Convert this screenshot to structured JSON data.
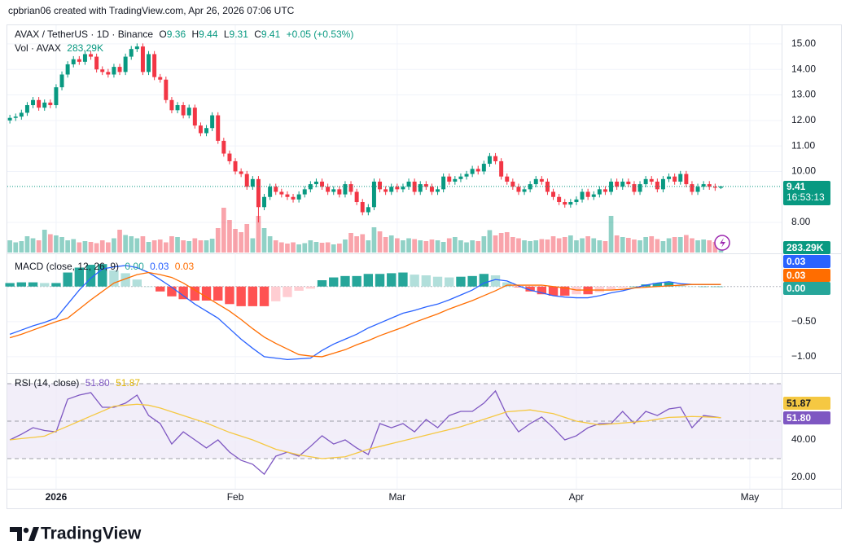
{
  "header": {
    "attribution": "cpbrian06 created with TradingView.com, Apr 26, 2026 07:06 UTC"
  },
  "footer": {
    "logo": "TradingView"
  },
  "chart_data": [
    {
      "type": "candlestick",
      "title": "AVAX / TetherUS · 1D · Binance",
      "ohlc_letters": [
        "O",
        "H",
        "L",
        "C"
      ],
      "change_label": "+0.05 (+0.53%)",
      "countdown": "16:53:13",
      "up_color": "#089981",
      "down_color": "#f23645",
      "open": [
        12,
        12.1,
        12.15,
        12.3,
        12.6,
        12.8,
        12.5,
        12.7,
        12.6,
        13.3,
        13.8,
        14.2,
        14.4,
        14.3,
        14.6,
        14.5,
        14,
        13.9,
        13.8,
        14.1,
        13.9,
        14.5,
        14.8,
        14.9,
        13.9,
        14.6,
        13.7,
        13.6,
        12.8,
        12.4,
        12.6,
        12.2,
        12.5,
        11.8,
        11.5,
        11.7,
        12.2,
        11.2,
        10.7,
        10.4,
        10,
        9.9,
        9.4,
        9.7,
        8.6,
        9,
        9.4,
        9.2,
        9.1,
        9,
        8.9,
        9.1,
        9.3,
        9.5,
        9.6,
        9.4,
        9.2,
        9.3,
        9.1,
        9.5,
        9.2,
        8.8,
        8.4,
        8.6,
        9.6,
        9.3,
        9.2,
        9.4,
        9.3,
        9.4,
        9.6,
        9.2,
        9.5,
        9.4,
        9.2,
        9.3,
        9.8,
        9.6,
        9.7,
        9.8,
        9.9,
        10.1,
        10,
        10.3,
        10.6,
        10.4,
        9.8,
        9.6,
        9.4,
        9.2,
        9.3,
        9.5,
        9.7,
        9.6,
        9.2,
        9,
        8.8,
        8.7,
        8.8,
        8.9,
        9.2,
        9,
        9.1,
        9.3,
        9.2,
        9.6,
        9.4,
        9.6,
        9.5,
        9.2,
        9.5,
        9.7,
        9.6,
        9.3,
        9.7,
        9.8,
        9.6,
        9.9,
        9.5,
        9.2,
        9.4,
        9.5,
        9.4,
        9.36
      ],
      "high": [
        12.22,
        12.27,
        12.42,
        12.72,
        12.92,
        12.92,
        12.82,
        12.82,
        13.42,
        13.92,
        14.32,
        14.52,
        14.52,
        14.72,
        14.72,
        14.62,
        14.12,
        14.02,
        14.22,
        14.22,
        14.62,
        14.92,
        15.02,
        15.02,
        14.72,
        14.72,
        13.82,
        13.72,
        12.92,
        12.72,
        12.72,
        12.62,
        12.62,
        11.92,
        11.82,
        12.32,
        12.32,
        11.32,
        10.82,
        10.52,
        10.12,
        10.02,
        9.82,
        9.82,
        9.12,
        9.52,
        9.52,
        9.32,
        9.22,
        9.12,
        9.22,
        9.42,
        9.62,
        9.72,
        9.72,
        9.52,
        9.42,
        9.42,
        9.62,
        9.62,
        9.32,
        8.92,
        8.72,
        9.72,
        9.72,
        9.42,
        9.52,
        9.52,
        9.52,
        9.72,
        9.72,
        9.62,
        9.62,
        9.52,
        9.42,
        9.92,
        9.92,
        9.82,
        9.92,
        10.02,
        10.22,
        10.22,
        10.42,
        10.72,
        10.72,
        10.52,
        9.92,
        9.72,
        9.52,
        9.42,
        9.62,
        9.82,
        9.82,
        9.72,
        9.32,
        9.12,
        8.92,
        8.92,
        9.02,
        9.32,
        9.32,
        9.22,
        9.42,
        9.42,
        9.72,
        9.72,
        9.72,
        9.72,
        9.62,
        9.62,
        9.82,
        9.82,
        9.72,
        9.82,
        9.92,
        9.92,
        10.02,
        10.02,
        9.62,
        9.52,
        9.62,
        9.62,
        9.52,
        9.44
      ],
      "low": [
        11.88,
        11.98,
        12.03,
        12.18,
        12.48,
        12.38,
        12.38,
        12.48,
        12.48,
        13.18,
        13.68,
        14.08,
        14.18,
        14.18,
        14.38,
        13.88,
        13.78,
        13.68,
        13.68,
        13.78,
        13.78,
        14.38,
        14.68,
        13.78,
        13.78,
        13.58,
        13.48,
        12.68,
        12.28,
        12.28,
        12.08,
        12.08,
        11.68,
        11.38,
        11.38,
        11.58,
        11.08,
        10.58,
        10.28,
        9.88,
        9.78,
        9.28,
        9.28,
        8,
        8.48,
        8.88,
        9.08,
        8.98,
        8.88,
        8.78,
        8.78,
        8.98,
        9.18,
        9.38,
        9.28,
        9.08,
        9.08,
        8.98,
        8.98,
        9.08,
        8.68,
        8.28,
        8.28,
        8.48,
        9.18,
        9.08,
        9.08,
        9.18,
        9.18,
        9.28,
        9.08,
        9.08,
        9.28,
        9.08,
        9.08,
        9.18,
        9.48,
        9.48,
        9.58,
        9.68,
        9.78,
        9.88,
        9.88,
        10.18,
        10.28,
        9.68,
        9.48,
        9.28,
        9.08,
        9.08,
        9.18,
        9.38,
        9.48,
        9.08,
        8.88,
        8.68,
        8.58,
        8.58,
        8.68,
        8.78,
        8.88,
        8.88,
        8.98,
        9.08,
        9.08,
        9.28,
        9.28,
        9.38,
        9.08,
        9.08,
        9.38,
        9.48,
        9.18,
        9.18,
        9.58,
        9.48,
        9.48,
        9.38,
        9.08,
        9.08,
        9.28,
        9.28,
        9.24,
        9.31
      ],
      "close": [
        12.1,
        12.15,
        12.3,
        12.6,
        12.8,
        12.5,
        12.7,
        12.6,
        13.3,
        13.8,
        14.2,
        14.4,
        14.3,
        14.6,
        14.5,
        14,
        13.9,
        13.8,
        14.1,
        13.9,
        14.5,
        14.8,
        14.9,
        13.9,
        14.6,
        13.7,
        13.6,
        12.8,
        12.4,
        12.6,
        12.2,
        12.5,
        11.8,
        11.5,
        11.7,
        12.2,
        11.2,
        10.7,
        10.4,
        10,
        9.9,
        9.4,
        9.7,
        8.6,
        9,
        9.4,
        9.2,
        9.1,
        9,
        8.9,
        9.1,
        9.3,
        9.5,
        9.6,
        9.4,
        9.2,
        9.3,
        9.1,
        9.5,
        9.2,
        8.8,
        8.4,
        8.6,
        9.6,
        9.3,
        9.2,
        9.4,
        9.3,
        9.4,
        9.6,
        9.2,
        9.5,
        9.4,
        9.2,
        9.3,
        9.8,
        9.6,
        9.7,
        9.8,
        9.9,
        10.1,
        10,
        10.3,
        10.6,
        10.4,
        9.8,
        9.6,
        9.4,
        9.2,
        9.3,
        9.5,
        9.7,
        9.6,
        9.2,
        9,
        8.8,
        8.7,
        8.8,
        8.9,
        9.2,
        9,
        9.1,
        9.3,
        9.2,
        9.6,
        9.4,
        9.6,
        9.5,
        9.2,
        9.5,
        9.7,
        9.6,
        9.3,
        9.7,
        9.8,
        9.6,
        9.9,
        9.5,
        9.2,
        9.4,
        9.5,
        9.4,
        9.36,
        9.41
      ],
      "volume": {
        "name": "Vol · AVAX",
        "last_label": "283.29K",
        "values": [
          300,
          250,
          280,
          400,
          350,
          300,
          560,
          450,
          420,
          380,
          300,
          330,
          250,
          280,
          260,
          230,
          300,
          250,
          350,
          560,
          430,
          400,
          350,
          400,
          260,
          300,
          320,
          250,
          400,
          380,
          300,
          280,
          350,
          300,
          300,
          340,
          600,
          1100,
          800,
          580,
          500,
          700,
          350,
          900,
          600,
          400,
          300,
          250,
          220,
          250,
          200,
          230,
          300,
          260,
          240,
          250,
          200,
          220,
          320,
          480,
          400,
          450,
          300,
          620,
          520,
          380,
          420,
          350,
          300,
          350,
          330,
          300,
          280,
          320,
          300,
          260,
          350,
          380,
          300,
          250,
          300,
          280,
          400,
          550,
          420,
          480,
          500,
          380,
          350,
          300,
          280,
          300,
          330,
          320,
          400,
          350,
          380,
          420,
          300,
          350,
          400,
          350,
          300,
          280,
          900,
          420,
          380,
          360,
          320,
          300,
          380,
          400,
          330,
          280,
          350,
          380,
          380,
          430,
          350,
          300,
          320,
          300,
          260,
          283.29
        ]
      },
      "xlim": [
        -0.3,
        133.5
      ],
      "xticks": [
        {
          "value": 8,
          "label": "2026"
        },
        {
          "value": 39,
          "label": "Feb"
        },
        {
          "value": 67,
          "label": "Mar"
        },
        {
          "value": 98,
          "label": "Apr"
        },
        {
          "value": 128,
          "label": "May"
        }
      ],
      "ylim": [
        6.82,
        15.7
      ],
      "yticks": [
        {
          "value": 15,
          "label": "15.00"
        },
        {
          "value": 14,
          "label": "14.00"
        },
        {
          "value": 13,
          "label": "13.00"
        },
        {
          "value": 12,
          "label": "12.00"
        },
        {
          "value": 11,
          "label": "11.00"
        },
        {
          "value": 10,
          "label": "10.00"
        },
        {
          "value": 8,
          "label": "8.00"
        }
      ],
      "grid": true
    },
    {
      "type": "macd",
      "title": "MACD (close, 12, 26, 9)",
      "legend_values": [
        "0.00",
        "0.03",
        "0.03"
      ],
      "x": [
        0,
        2,
        4,
        6,
        8,
        10,
        12,
        14,
        16,
        18,
        20,
        22,
        24,
        26,
        28,
        30,
        32,
        34,
        36,
        38,
        40,
        42,
        44,
        46,
        48,
        50,
        52,
        54,
        56,
        58,
        60,
        62,
        64,
        66,
        68,
        70,
        72,
        74,
        76,
        78,
        80,
        82,
        84,
        86,
        88,
        90,
        92,
        94,
        96,
        98,
        100,
        102,
        104,
        106,
        108,
        110,
        112,
        114,
        116,
        118,
        120,
        122,
        123
      ],
      "histogram": {
        "name": "Histogram",
        "colors": [
          "#26a69a",
          "#b2dfdb",
          "#ffcdd2",
          "#ff5252"
        ],
        "values": [
          0.05,
          0.06,
          0.06,
          0.05,
          0.05,
          0.2,
          0.27,
          0.31,
          0.32,
          0.23,
          0.19,
          0.1,
          0,
          -0.07,
          -0.14,
          -0.18,
          -0.2,
          -0.2,
          -0.2,
          -0.25,
          -0.28,
          -0.28,
          -0.28,
          -0.21,
          -0.15,
          -0.06,
          -0.03,
          0.09,
          0.13,
          0.15,
          0.15,
          0.18,
          0.18,
          0.19,
          0.2,
          0.17,
          0.16,
          0.14,
          0.13,
          0.14,
          0.15,
          0.18,
          0.16,
          0.06,
          -0.01,
          -0.07,
          -0.11,
          -0.13,
          -0.13,
          -0.11,
          -0.11,
          -0.08,
          -0.04,
          -0.02,
          0,
          0.03,
          0.05,
          0.06,
          0.02,
          0,
          0,
          0,
          0
        ]
      },
      "series": [
        {
          "name": "MACD",
          "color": "#2962ff",
          "values": [
            -0.68,
            -0.62,
            -0.56,
            -0.51,
            -0.45,
            -0.25,
            -0.05,
            0.12,
            0.25,
            0.28,
            0.3,
            0.27,
            0.2,
            0.1,
            -0.01,
            -0.13,
            -0.25,
            -0.35,
            -0.45,
            -0.6,
            -0.75,
            -0.88,
            -1,
            -1.02,
            -1.04,
            -1.03,
            -1.02,
            -0.91,
            -0.82,
            -0.75,
            -0.68,
            -0.59,
            -0.52,
            -0.45,
            -0.38,
            -0.34,
            -0.29,
            -0.25,
            -0.19,
            -0.12,
            -0.05,
            0.05,
            0.1,
            0.08,
            0.01,
            -0.05,
            -0.09,
            -0.13,
            -0.15,
            -0.16,
            -0.16,
            -0.13,
            -0.09,
            -0.06,
            -0.02,
            0.02,
            0.05,
            0.07,
            0.04,
            0.03,
            0.03,
            0.03,
            0.03
          ]
        },
        {
          "name": "Signal",
          "color": "#ff6d00",
          "values": [
            -0.73,
            -0.68,
            -0.62,
            -0.56,
            -0.5,
            -0.45,
            -0.32,
            -0.19,
            -0.07,
            0.05,
            0.11,
            0.17,
            0.2,
            0.17,
            0.13,
            0.05,
            -0.05,
            -0.15,
            -0.25,
            -0.35,
            -0.47,
            -0.6,
            -0.72,
            -0.81,
            -0.89,
            -0.97,
            -0.99,
            -1,
            -0.95,
            -0.9,
            -0.83,
            -0.77,
            -0.7,
            -0.64,
            -0.58,
            -0.51,
            -0.45,
            -0.39,
            -0.32,
            -0.26,
            -0.2,
            -0.13,
            -0.06,
            0.02,
            0.02,
            0.02,
            0.02,
            0,
            -0.02,
            -0.05,
            -0.05,
            -0.05,
            -0.05,
            -0.04,
            -0.02,
            -0.01,
            0,
            0.01,
            0.02,
            0.03,
            0.03,
            0.03,
            0.03
          ]
        }
      ],
      "ylim": [
        -1.21,
        0.45
      ],
      "yticks": [
        {
          "value": -0.5,
          "label": "−0.50"
        },
        {
          "value": -1,
          "label": "−1.00"
        }
      ],
      "zero_line": true
    },
    {
      "type": "rsi",
      "title": "RSI (14, close)",
      "legend_values": [
        "51.80",
        "51.87"
      ],
      "x": [
        0,
        2,
        4,
        6,
        8,
        10,
        12,
        14,
        16,
        18,
        20,
        22,
        24,
        26,
        28,
        30,
        32,
        34,
        36,
        38,
        40,
        42,
        44,
        46,
        48,
        50,
        52,
        54,
        56,
        58,
        60,
        62,
        64,
        66,
        68,
        70,
        72,
        74,
        76,
        78,
        80,
        82,
        84,
        86,
        88,
        90,
        92,
        94,
        96,
        98,
        100,
        102,
        104,
        106,
        108,
        110,
        112,
        114,
        116,
        118,
        120,
        122,
        123
      ],
      "series": [
        {
          "name": "RSI",
          "color": "#7e57c2",
          "values": [
            40,
            43,
            46.5,
            45,
            44.3,
            61.7,
            63.9,
            65.2,
            57.4,
            57.4,
            59.6,
            63.9,
            53,
            48.7,
            37.8,
            44.3,
            40,
            35.7,
            40,
            33.5,
            29.1,
            27,
            21.7,
            31.3,
            33.5,
            31.3,
            36.5,
            42.2,
            37.8,
            40,
            35.7,
            32.2,
            48.7,
            46.5,
            48.7,
            44.3,
            50.9,
            46.5,
            53,
            55.2,
            55.2,
            59.6,
            66.1,
            53,
            44.3,
            48.7,
            52.2,
            46.5,
            40,
            42.2,
            46.5,
            48.7,
            48.7,
            55.2,
            48.7,
            55.2,
            53,
            56.5,
            57.4,
            46.5,
            53,
            52.2,
            51.8
          ]
        },
        {
          "name": "RSI-based MA",
          "color": "#f5c842",
          "values": [
            40,
            40.7,
            41.3,
            42,
            44.7,
            47.3,
            50,
            52.7,
            55.3,
            58,
            58.5,
            59,
            58.5,
            57,
            55,
            53,
            51,
            49,
            46.5,
            44,
            42,
            40,
            37.5,
            35,
            33.5,
            32,
            31,
            30,
            30.5,
            31,
            33,
            35,
            36.5,
            38,
            39.5,
            41,
            42.5,
            44,
            45.5,
            47,
            49,
            51,
            53,
            55,
            55.5,
            56,
            55,
            54,
            52,
            50,
            49,
            48,
            48.5,
            49,
            49.5,
            50,
            51,
            52,
            52.2,
            52.5,
            52.3,
            52,
            51.87
          ]
        }
      ],
      "bands": [
        70,
        50,
        30
      ],
      "band_fill": "#ede7f6",
      "ylim": [
        14.8,
        73.9
      ],
      "yticks": [
        {
          "value": 40,
          "label": "40.00"
        },
        {
          "value": 20,
          "label": "20.00"
        }
      ]
    }
  ]
}
